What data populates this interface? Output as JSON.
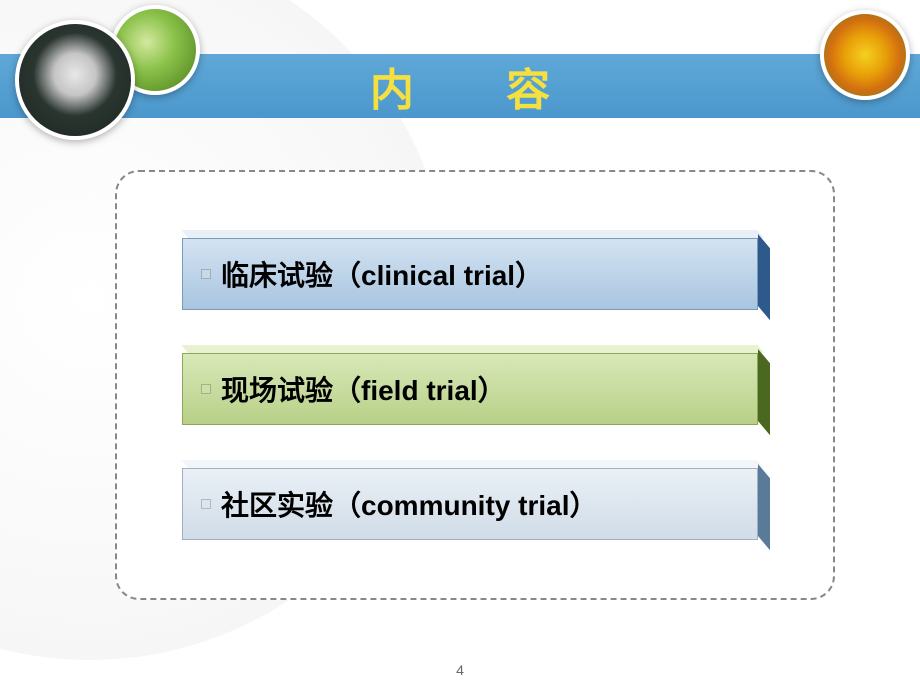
{
  "header": {
    "title": "内  容",
    "title_color": "#f5e040",
    "bar_gradient_top": "#5fa8d8",
    "bar_gradient_bottom": "#4b97cc"
  },
  "decorations": {
    "circle1": "dandelion-icon",
    "circle2": "leaf-droplet-icon",
    "circle3": "tulip-icon"
  },
  "items": [
    {
      "text": "临床试验（clinical trial）",
      "face_gradient": [
        "#d4e3f2",
        "#a8c5e0"
      ],
      "side_color": "#2d5a8a",
      "top_color": "#e8eff6"
    },
    {
      "text": "现场试验（field  trial）",
      "face_gradient": [
        "#d8e8b8",
        "#b8d088"
      ],
      "side_color": "#4a6820",
      "top_color": "#e8f2d0"
    },
    {
      "text": "社区实验（community  trial）",
      "face_gradient": [
        "#eaf0f6",
        "#d0dce8"
      ],
      "side_color": "#5a7a9a",
      "top_color": "#f2f6fa"
    }
  ],
  "content_box": {
    "border_color": "#888888",
    "border_radius": 24
  },
  "page_number": "4",
  "background": "#ffffff"
}
